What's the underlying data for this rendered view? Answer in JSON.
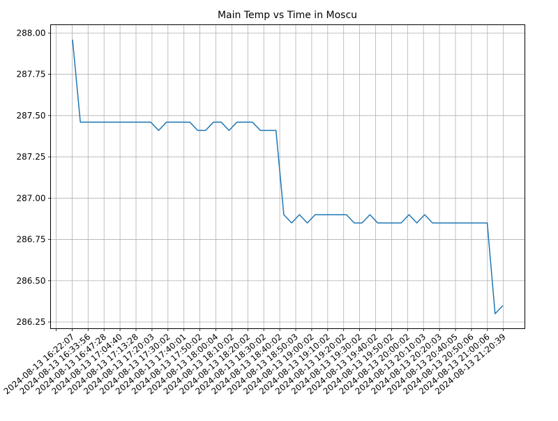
{
  "chart_data": {
    "type": "line",
    "title": "Main Temp vs Time in Moscu",
    "xlabel": "",
    "ylabel": "",
    "grid": true,
    "line_color": "#1f77b4",
    "ylim": [
      286.21,
      288.05
    ],
    "yticks": [
      "288.00",
      "287.75",
      "287.50",
      "287.25",
      "287.00",
      "286.75",
      "286.50",
      "286.25"
    ],
    "xtick_labels": [
      "2024-08-13 16:22:07",
      "2024-08-13 16:33:56",
      "2024-08-13 16:47:28",
      "2024-08-13 17:04:40",
      "2024-08-13 17:13:28",
      "2024-08-13 17:20:03",
      "2024-08-13 17:30:02",
      "2024-08-13 17:40:01",
      "2024-08-13 17:50:02",
      "2024-08-13 18:00:04",
      "2024-08-13 18:10:02",
      "2024-08-13 18:20:02",
      "2024-08-13 18:30:02",
      "2024-08-13 18:40:02",
      "2024-08-13 18:50:03",
      "2024-08-13 19:00:02",
      "2024-08-13 19:10:02",
      "2024-08-13 19:20:02",
      "2024-08-13 19:30:02",
      "2024-08-13 19:40:02",
      "2024-08-13 19:50:02",
      "2024-08-13 20:00:02",
      "2024-08-13 20:10:03",
      "2024-08-13 20:20:03",
      "2024-08-13 20:40:05",
      "2024-08-13 20:50:06",
      "2024-08-13 21:00:06",
      "2024-08-13 21:20:39"
    ],
    "values": [
      287.96,
      287.46,
      287.46,
      287.46,
      287.46,
      287.46,
      287.46,
      287.46,
      287.46,
      287.46,
      287.46,
      287.41,
      287.46,
      287.46,
      287.46,
      287.46,
      287.41,
      287.41,
      287.46,
      287.46,
      287.41,
      287.46,
      287.46,
      287.46,
      287.41,
      287.41,
      287.41,
      286.9,
      286.85,
      286.9,
      286.85,
      286.9,
      286.9,
      286.9,
      286.9,
      286.9,
      286.85,
      286.85,
      286.9,
      286.85,
      286.85,
      286.85,
      286.85,
      286.9,
      286.85,
      286.9,
      286.85,
      286.85,
      286.85,
      286.85,
      286.85,
      286.85,
      286.85,
      286.85,
      286.3,
      286.35
    ]
  }
}
